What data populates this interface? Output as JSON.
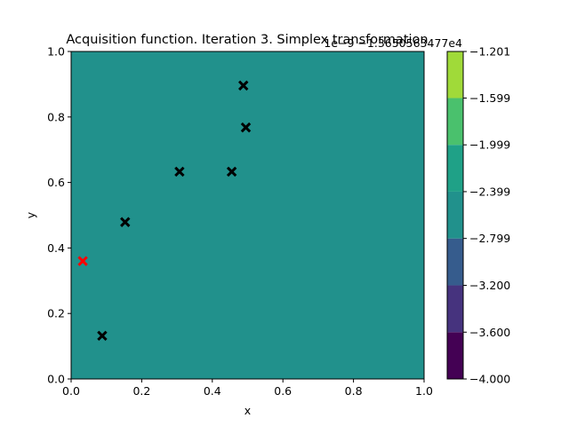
{
  "chart_data": {
    "type": "heatmap",
    "title": "Acquisition function. Iteration 3. Simplex transformation",
    "xlabel": "x",
    "ylabel": "y",
    "xlim": [
      0,
      1
    ],
    "ylim": [
      0,
      1
    ],
    "x_ticks": [
      "0.0",
      "0.2",
      "0.4",
      "0.6",
      "0.8",
      "1.0"
    ],
    "y_ticks": [
      "0.0",
      "0.2",
      "0.4",
      "0.6",
      "0.8",
      "1.0"
    ],
    "field_level_index": 3,
    "field_color": "#21918c",
    "observed_points": [
      {
        "x": 0.088,
        "y": 0.132
      },
      {
        "x": 0.153,
        "y": 0.479
      },
      {
        "x": 0.307,
        "y": 0.633
      },
      {
        "x": 0.455,
        "y": 0.633
      },
      {
        "x": 0.488,
        "y": 0.896
      },
      {
        "x": 0.495,
        "y": 0.768
      }
    ],
    "observed_color": "#000000",
    "next_point": {
      "x": 0.033,
      "y": 0.36
    },
    "next_color": "#ff0000",
    "colorbar": {
      "offset_text": "1e−9 −1.3650563477e4",
      "tick_labels": [
        "−1.201",
        "−1.599",
        "−1.999",
        "−2.399",
        "−2.799",
        "−3.200",
        "−3.600",
        "−4.000"
      ],
      "tick_values": [
        -1.201,
        -1.599,
        -1.999,
        -2.399,
        -2.799,
        -3.2,
        -3.6,
        -4.0
      ],
      "range": [
        -4.0,
        -1.201
      ],
      "level_colors": [
        "#440154",
        "#46337e",
        "#365c8d",
        "#21918c",
        "#1fa187",
        "#4ac16d",
        "#a0da39",
        "#d2e21b"
      ]
    }
  }
}
